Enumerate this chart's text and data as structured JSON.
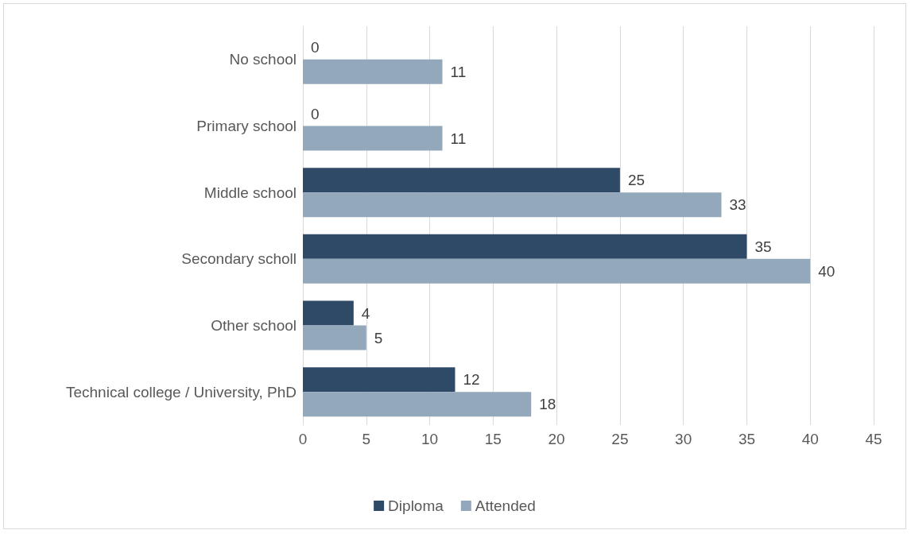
{
  "chart_data": {
    "type": "bar",
    "orientation": "horizontal",
    "categories": [
      "No school",
      "Primary school",
      "Middle school",
      "Secondary scholl",
      "Other school",
      "Technical college / University, PhD"
    ],
    "series": [
      {
        "name": "Diploma",
        "color": "#2e4a66",
        "values": [
          0,
          0,
          25,
          35,
          4,
          12
        ]
      },
      {
        "name": "Attended",
        "color": "#94a8bc",
        "values": [
          11,
          11,
          33,
          40,
          5,
          18
        ]
      }
    ],
    "xlim": [
      0,
      45
    ],
    "xticks": [
      0,
      5,
      10,
      15,
      20,
      25,
      30,
      35,
      40,
      45
    ],
    "grid": "x",
    "legend": "bottom",
    "data_labels": true
  }
}
